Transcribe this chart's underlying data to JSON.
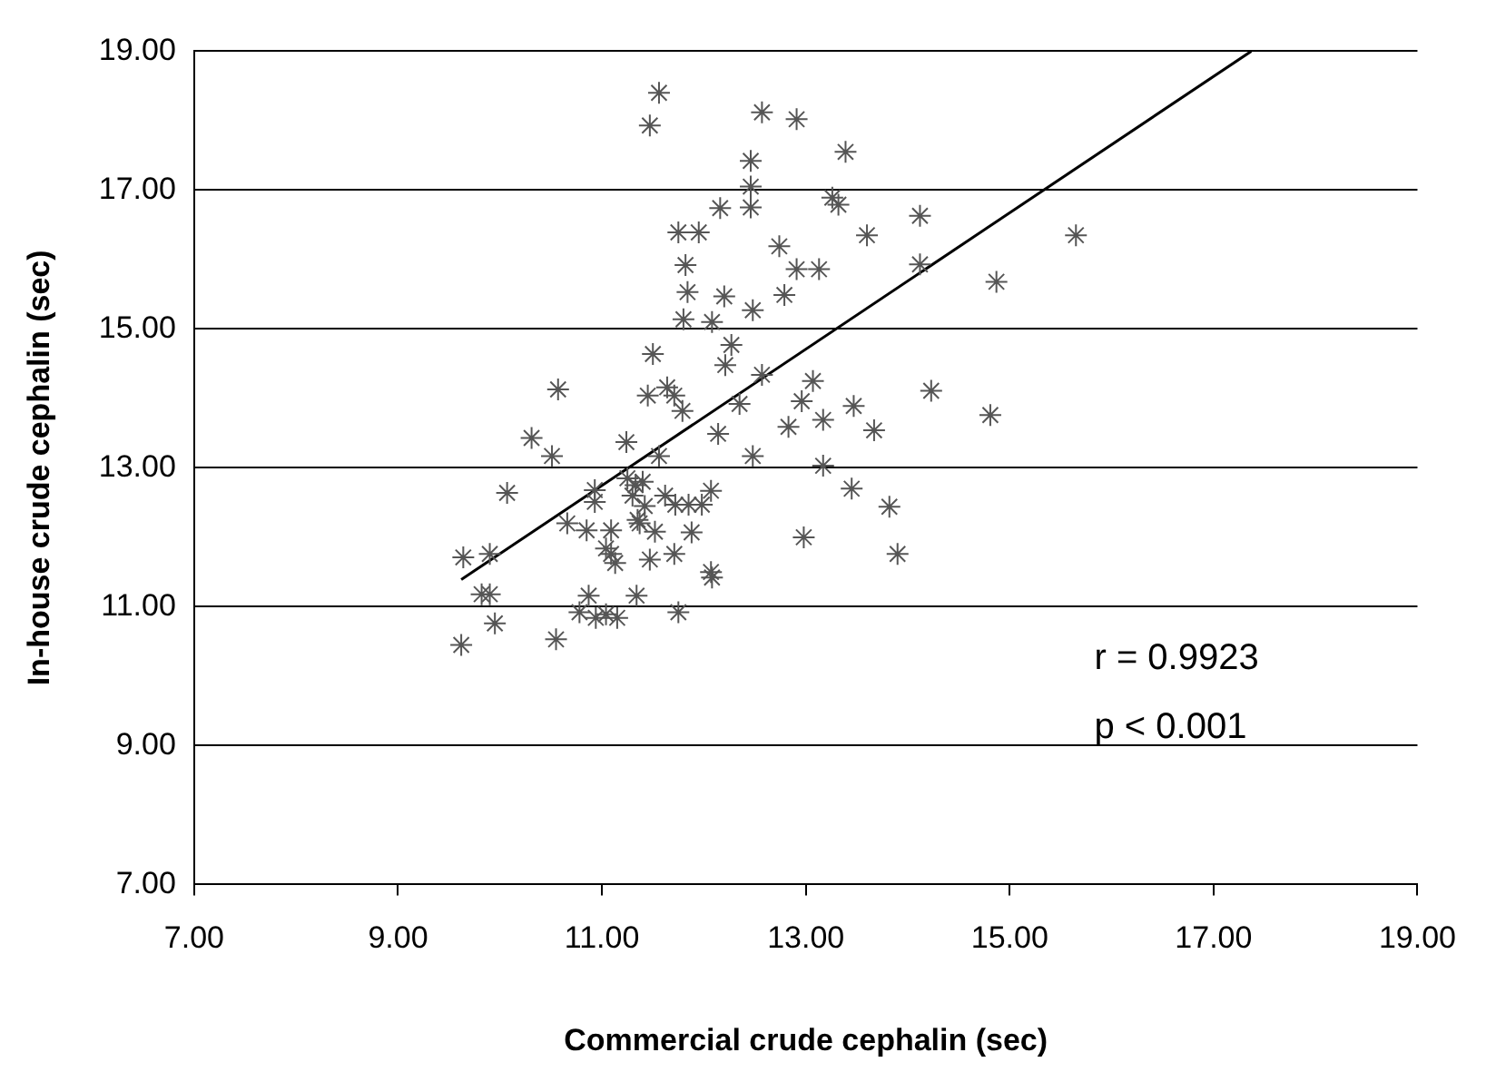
{
  "chart_data": {
    "type": "scatter",
    "xlabel": "Commercial crude cephalin (sec)",
    "ylabel": "In-house crude cephalin (sec)",
    "xlim": [
      7,
      19
    ],
    "ylim": [
      7,
      19
    ],
    "xticks": [
      {
        "value": 7,
        "label": "7.00"
      },
      {
        "value": 9,
        "label": "9.00"
      },
      {
        "value": 11,
        "label": "11.00"
      },
      {
        "value": 13,
        "label": "13.00"
      },
      {
        "value": 15,
        "label": "15.00"
      },
      {
        "value": 17,
        "label": "17.00"
      },
      {
        "value": 19,
        "label": "19.00"
      }
    ],
    "yticks": [
      {
        "value": 7,
        "label": "7.00"
      },
      {
        "value": 9,
        "label": "9.00"
      },
      {
        "value": 11,
        "label": "11.00"
      },
      {
        "value": 13,
        "label": "13.00"
      },
      {
        "value": 15,
        "label": "15.00"
      },
      {
        "value": 17,
        "label": "17.00"
      },
      {
        "value": 19,
        "label": "19.00"
      }
    ],
    "grid": "y",
    "legend": false,
    "annotations": [
      "r = 0.9923",
      "p < 0.001"
    ],
    "series": [
      {
        "color": "#555555",
        "marker": "cross",
        "x": [
          11.56,
          11.47,
          11.75,
          11.95,
          11.82,
          11.84,
          11.8,
          11.5,
          12.57,
          12.91,
          13.39,
          12.46,
          12.46,
          12.46,
          13.26,
          13.32,
          12.16,
          13.6,
          14.12,
          12.74,
          12.91,
          13.13,
          14.12,
          14.87,
          12.2,
          12.79,
          12.48,
          12.08,
          12.27,
          12.21,
          12.57,
          15.65,
          11.45,
          11.64,
          11.71,
          11.79,
          10.57,
          10.31,
          10.51,
          11.24,
          11.56,
          10.07,
          10.93,
          10.93,
          11.25,
          11.33,
          11.4,
          11.3,
          11.42,
          11.35,
          11.62,
          11.72,
          11.85,
          10.66,
          10.85,
          11.09,
          11.04,
          11.09,
          11.13,
          11.37,
          11.52,
          11.71,
          11.47,
          9.64,
          9.9,
          9.82,
          9.9,
          9.95,
          9.62,
          10.55,
          10.78,
          10.87,
          10.94,
          11.04,
          11.15,
          11.34,
          11.75,
          13.07,
          12.35,
          12.96,
          13.47,
          14.23,
          14.81,
          12.14,
          12.83,
          13.17,
          13.67,
          12.48,
          13.17,
          12.07,
          11.98,
          13.45,
          13.82,
          11.88,
          12.98,
          13.9,
          12.07,
          12.08
        ],
        "values": [
          18.4,
          17.93,
          16.39,
          16.39,
          15.92,
          15.53,
          15.14,
          14.64,
          18.12,
          18.02,
          17.55,
          17.42,
          17.05,
          16.75,
          16.89,
          16.79,
          16.74,
          16.35,
          16.63,
          16.19,
          15.86,
          15.86,
          15.93,
          15.68,
          15.47,
          15.49,
          15.27,
          15.1,
          14.77,
          14.48,
          14.34,
          16.35,
          14.04,
          14.16,
          14.04,
          13.82,
          14.13,
          13.43,
          13.17,
          13.37,
          13.17,
          12.64,
          12.68,
          12.51,
          12.85,
          12.75,
          12.8,
          12.6,
          12.45,
          12.25,
          12.6,
          12.47,
          12.47,
          12.2,
          12.1,
          12.1,
          11.84,
          11.76,
          11.63,
          12.2,
          12.08,
          11.76,
          11.68,
          11.71,
          11.76,
          11.18,
          11.18,
          10.76,
          10.45,
          10.53,
          10.92,
          11.16,
          10.84,
          10.89,
          10.84,
          11.16,
          10.92,
          14.25,
          13.92,
          13.96,
          13.89,
          14.11,
          13.76,
          13.49,
          13.59,
          13.69,
          13.54,
          13.17,
          13.03,
          12.67,
          12.47,
          12.7,
          12.44,
          12.07,
          12.0,
          11.76,
          11.5,
          11.42
        ]
      },
      {
        "type": "line",
        "marker": "none",
        "color": "#000000",
        "x": [
          9.62,
          17.37
        ],
        "values": [
          11.39,
          19.0
        ]
      }
    ]
  }
}
